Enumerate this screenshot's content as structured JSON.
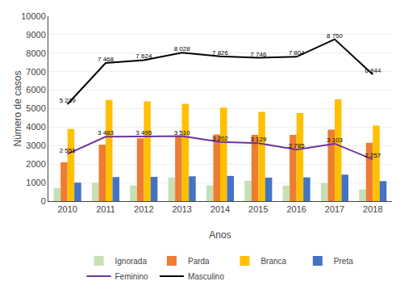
{
  "chart_data": {
    "type": "bar",
    "categories": [
      "2010",
      "2011",
      "2012",
      "2013",
      "2014",
      "2015",
      "2016",
      "2017",
      "2018"
    ],
    "series": [
      {
        "name": "Ignorada",
        "type": "bar",
        "color": "#c6e0b4",
        "values": [
          700,
          1000,
          850,
          1280,
          850,
          1100,
          830,
          970,
          630
        ]
      },
      {
        "name": "Parda",
        "type": "bar",
        "color": "#ed7d31",
        "values": [
          2100,
          3050,
          3400,
          3500,
          3600,
          3580,
          3580,
          3870,
          3150
        ]
      },
      {
        "name": "Branca",
        "type": "bar",
        "color": "#ffc000",
        "values": [
          3900,
          5470,
          5390,
          5260,
          5050,
          4820,
          4760,
          5500,
          4080
        ]
      },
      {
        "name": "Preta",
        "type": "bar",
        "color": "#4472c4",
        "values": [
          1000,
          1300,
          1310,
          1340,
          1360,
          1270,
          1280,
          1430,
          1080
        ]
      },
      {
        "name": "Feminino",
        "type": "line",
        "color": "#7030a0",
        "values": [
          2551,
          3483,
          3495,
          3510,
          3202,
          3129,
          2785,
          3103,
          2257
        ],
        "value_labels": [
          "2 551",
          "3 483",
          "3 495",
          "3 510",
          "3 202",
          "3 129",
          "2 785",
          "3 103",
          "2 257"
        ]
      },
      {
        "name": "Masculino",
        "type": "line",
        "color": "#000000",
        "values": [
          5239,
          7468,
          7624,
          8028,
          7826,
          7746,
          7804,
          8750,
          6844
        ],
        "value_labels": [
          "5 239",
          "7 468",
          "7 624",
          "8 028",
          "7 826",
          "7 746",
          "7 804",
          "8 750",
          "6 844"
        ]
      }
    ],
    "xlabel": "Anos",
    "ylabel": "Número de casos",
    "ylim": [
      0,
      10000
    ],
    "yticks": [
      0,
      1000,
      2000,
      3000,
      4000,
      5000,
      6000,
      7000,
      8000,
      9000,
      10000
    ],
    "grid": true,
    "legend": "bottom"
  }
}
